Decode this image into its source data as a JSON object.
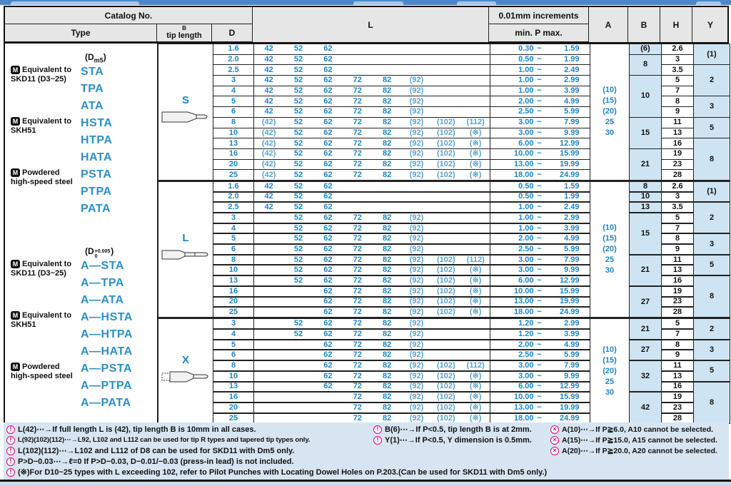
{
  "header": {
    "catalog_no": "Catalog No.",
    "type": "Type",
    "tip_b": "B",
    "tip_length": "tip length",
    "d": "D",
    "l": "L",
    "increments": "0.01mm increments",
    "min_p_max": "min.  P  max.",
    "a": "A",
    "b": "B",
    "h": "H",
    "y": "Y"
  },
  "catalog": {
    "groups": [
      {
        "dim": {
          "pre": "(D",
          "sub": "m5",
          "post": ")"
        },
        "materials": [
          {
            "badge": "M",
            "label": "Equivalent to SKD11 (D3~25)",
            "types": [
              "STA",
              "TPA",
              "ATA"
            ]
          },
          {
            "badge": "M",
            "label": "Equivalent to SKH51",
            "types": [
              "HSTA",
              "HTPA",
              "HATA"
            ]
          },
          {
            "badge": "M",
            "label": "Powdered high-speed steel",
            "types": [
              "PSTA",
              "PTPA",
              "PATA"
            ]
          }
        ]
      },
      {
        "dim": {
          "pre": "(D",
          "sup": "+0.005",
          "sub": "0",
          "post": ")"
        },
        "materials": [
          {
            "badge": "M",
            "label": "Equivalent to SKD11 (D3~25)",
            "types": [
              "A—STA",
              "A—TPA",
              "A—ATA"
            ]
          },
          {
            "badge": "M",
            "label": "Equivalent to SKH51",
            "types": [
              "A—HSTA",
              "A—HTPA",
              "A—HATA"
            ]
          },
          {
            "badge": "M",
            "label": "Powdered high-speed steel",
            "types": [
              "A—PSTA",
              "A—PTPA",
              "A—PATA"
            ]
          }
        ]
      }
    ]
  },
  "sections": [
    {
      "shape": "S",
      "a_values": [
        "(10)",
        "(15)",
        "(20)",
        "25",
        "30"
      ],
      "b_groups": [
        [
          "(6)",
          1
        ],
        [
          "8",
          2
        ],
        [
          "10",
          4
        ],
        [
          "15",
          3
        ],
        [
          "21",
          3
        ]
      ],
      "y_groups": [
        [
          "(1)",
          2
        ],
        [
          "2",
          3
        ],
        [
          "3",
          2
        ],
        [
          "5",
          2
        ],
        [
          "8",
          4
        ]
      ],
      "rows": [
        {
          "d": "1.6",
          "l": [
            "42",
            "52",
            "62",
            "",
            "",
            "",
            "",
            ""
          ],
          "p": [
            "0.30",
            "1.59"
          ],
          "h": "2.6"
        },
        {
          "d": "2.0",
          "l": [
            "42",
            "52",
            "62",
            "",
            "",
            "",
            "",
            ""
          ],
          "p": [
            "0.50",
            "1.99"
          ],
          "h": "3"
        },
        {
          "d": "2.5",
          "l": [
            "42",
            "52",
            "62",
            "",
            "",
            "",
            "",
            ""
          ],
          "p": [
            "1.00",
            "2.49"
          ],
          "h": "3.5"
        },
        {
          "d": "3",
          "l": [
            "42",
            "52",
            "62",
            "72",
            "82",
            "(92)",
            "",
            ""
          ],
          "p": [
            "1.00",
            "2.99"
          ],
          "h": "5"
        },
        {
          "d": "4",
          "l": [
            "42",
            "52",
            "62",
            "72",
            "82",
            "(92)",
            "",
            ""
          ],
          "p": [
            "1.00",
            "3.99"
          ],
          "h": "7"
        },
        {
          "d": "5",
          "l": [
            "42",
            "52",
            "62",
            "72",
            "82",
            "(92)",
            "",
            ""
          ],
          "p": [
            "2.00",
            "4.99"
          ],
          "h": "8"
        },
        {
          "d": "6",
          "l": [
            "42",
            "52",
            "62",
            "72",
            "82",
            "(92)",
            "",
            ""
          ],
          "p": [
            "2.50",
            "5.99"
          ],
          "h": "9"
        },
        {
          "d": "8",
          "l": [
            "(42)",
            "52",
            "62",
            "72",
            "82",
            "(92)",
            "(102)",
            "(112)"
          ],
          "p": [
            "3.00",
            "7.99"
          ],
          "h": "11"
        },
        {
          "d": "10",
          "l": [
            "(42)",
            "52",
            "62",
            "72",
            "82",
            "(92)",
            "(102)",
            "(※)"
          ],
          "p": [
            "3.00",
            "9.99"
          ],
          "h": "13"
        },
        {
          "d": "13",
          "l": [
            "(42)",
            "52",
            "62",
            "72",
            "82",
            "(92)",
            "(102)",
            "(※)"
          ],
          "p": [
            "6.00",
            "12.99"
          ],
          "h": "16"
        },
        {
          "d": "16",
          "l": [
            "(42)",
            "52",
            "62",
            "72",
            "82",
            "(92)",
            "(102)",
            "(※)"
          ],
          "p": [
            "10.00",
            "15.99"
          ],
          "h": "19"
        },
        {
          "d": "20",
          "l": [
            "(42)",
            "52",
            "62",
            "72",
            "82",
            "(92)",
            "(102)",
            "(※)"
          ],
          "p": [
            "13.00",
            "19.99"
          ],
          "h": "23"
        },
        {
          "d": "25",
          "l": [
            "(42)",
            "52",
            "62",
            "72",
            "82",
            "(92)",
            "(102)",
            "(※)"
          ],
          "p": [
            "18.00",
            "24.99"
          ],
          "h": "28"
        }
      ]
    },
    {
      "shape": "L",
      "a_values": [
        "(10)",
        "(15)",
        "(20)",
        "25",
        "30"
      ],
      "b_groups": [
        [
          "8",
          1
        ],
        [
          "10",
          1
        ],
        [
          "13",
          1
        ],
        [
          "15",
          4
        ],
        [
          "21",
          3
        ],
        [
          "27",
          3
        ]
      ],
      "y_groups": [
        [
          "(1)",
          2
        ],
        [
          "2",
          3
        ],
        [
          "3",
          2
        ],
        [
          "5",
          2
        ],
        [
          "8",
          4
        ]
      ],
      "rows": [
        {
          "d": "1.6",
          "l": [
            "42",
            "52",
            "62",
            "",
            "",
            "",
            "",
            ""
          ],
          "p": [
            "0.50",
            "1.59"
          ],
          "h": "2.6"
        },
        {
          "d": "2.0",
          "l": [
            "42",
            "52",
            "62",
            "",
            "",
            "",
            "",
            ""
          ],
          "p": [
            "0.50",
            "1.99"
          ],
          "h": "3"
        },
        {
          "d": "2.5",
          "l": [
            "42",
            "52",
            "62",
            "",
            "",
            "",
            "",
            ""
          ],
          "p": [
            "1.00",
            "2.49"
          ],
          "h": "3.5"
        },
        {
          "d": "3",
          "l": [
            "",
            "52",
            "62",
            "72",
            "82",
            "(92)",
            "",
            ""
          ],
          "p": [
            "1.00",
            "2.99"
          ],
          "h": "5"
        },
        {
          "d": "4",
          "l": [
            "",
            "52",
            "62",
            "72",
            "82",
            "(92)",
            "",
            ""
          ],
          "p": [
            "1.00",
            "3.99"
          ],
          "h": "7"
        },
        {
          "d": "5",
          "l": [
            "",
            "52",
            "62",
            "72",
            "82",
            "(92)",
            "",
            ""
          ],
          "p": [
            "2.00",
            "4.99"
          ],
          "h": "8"
        },
        {
          "d": "6",
          "l": [
            "",
            "52",
            "62",
            "72",
            "82",
            "(92)",
            "",
            ""
          ],
          "p": [
            "2.50",
            "5.99"
          ],
          "h": "9"
        },
        {
          "d": "8",
          "l": [
            "",
            "52",
            "62",
            "72",
            "82",
            "(92)",
            "(102)",
            "(112)"
          ],
          "p": [
            "3.00",
            "7.99"
          ],
          "h": "11"
        },
        {
          "d": "10",
          "l": [
            "",
            "52",
            "62",
            "72",
            "82",
            "(92)",
            "(102)",
            "(※)"
          ],
          "p": [
            "3.00",
            "9.99"
          ],
          "h": "13"
        },
        {
          "d": "13",
          "l": [
            "",
            "52",
            "62",
            "72",
            "82",
            "(92)",
            "(102)",
            "(※)"
          ],
          "p": [
            "6.00",
            "12.99"
          ],
          "h": "16"
        },
        {
          "d": "16",
          "l": [
            "",
            "",
            "62",
            "72",
            "82",
            "(92)",
            "(102)",
            "(※)"
          ],
          "p": [
            "10.00",
            "15.99"
          ],
          "h": "19"
        },
        {
          "d": "20",
          "l": [
            "",
            "",
            "62",
            "72",
            "82",
            "(92)",
            "(102)",
            "(※)"
          ],
          "p": [
            "13.00",
            "19.99"
          ],
          "h": "23"
        },
        {
          "d": "25",
          "l": [
            "",
            "",
            "62",
            "72",
            "82",
            "(92)",
            "(102)",
            "(※)"
          ],
          "p": [
            "18.00",
            "24.99"
          ],
          "h": "28"
        }
      ]
    },
    {
      "shape": "X",
      "a_values": [
        "(10)",
        "(15)",
        "(20)",
        "25",
        "30"
      ],
      "b_groups": [
        [
          "21",
          2
        ],
        [
          "27",
          2
        ],
        [
          "32",
          3
        ],
        [
          "42",
          3
        ]
      ],
      "y_groups": [
        [
          "2",
          2
        ],
        [
          "3",
          2
        ],
        [
          "5",
          2
        ],
        [
          "8",
          4
        ]
      ],
      "rows": [
        {
          "d": "3",
          "l": [
            "",
            "52",
            "62",
            "72",
            "82",
            "(92)",
            "",
            ""
          ],
          "p": [
            "1.20",
            "2.99"
          ],
          "h": "5"
        },
        {
          "d": "4",
          "l": [
            "",
            "52",
            "62",
            "72",
            "82",
            "(92)",
            "",
            ""
          ],
          "p": [
            "1.20",
            "3.99"
          ],
          "h": "7"
        },
        {
          "d": "5",
          "l": [
            "",
            "",
            "62",
            "72",
            "82",
            "(92)",
            "",
            ""
          ],
          "p": [
            "2.00",
            "4.99"
          ],
          "h": "8"
        },
        {
          "d": "6",
          "l": [
            "",
            "",
            "62",
            "72",
            "82",
            "(92)",
            "",
            ""
          ],
          "p": [
            "2.50",
            "5.99"
          ],
          "h": "9"
        },
        {
          "d": "8",
          "l": [
            "",
            "",
            "62",
            "72",
            "82",
            "(92)",
            "(102)",
            "(112)"
          ],
          "p": [
            "3.00",
            "7.99"
          ],
          "h": "11"
        },
        {
          "d": "10",
          "l": [
            "",
            "",
            "62",
            "72",
            "82",
            "(92)",
            "(102)",
            "(※)"
          ],
          "p": [
            "3.00",
            "9.99"
          ],
          "h": "13"
        },
        {
          "d": "13",
          "l": [
            "",
            "",
            "62",
            "72",
            "82",
            "(92)",
            "(102)",
            "(※)"
          ],
          "p": [
            "6.00",
            "12.99"
          ],
          "h": "16"
        },
        {
          "d": "16",
          "l": [
            "",
            "",
            "",
            "72",
            "82",
            "(92)",
            "(102)",
            "(※)"
          ],
          "p": [
            "10.00",
            "15.99"
          ],
          "h": "19"
        },
        {
          "d": "20",
          "l": [
            "",
            "",
            "",
            "72",
            "82",
            "(92)",
            "(102)",
            "(※)"
          ],
          "p": [
            "13.00",
            "19.99"
          ],
          "h": "23"
        },
        {
          "d": "25",
          "l": [
            "",
            "",
            "",
            "72",
            "82",
            "(92)",
            "(102)",
            "(※)"
          ],
          "p": [
            "18.00",
            "24.99"
          ],
          "h": "28"
        }
      ]
    }
  ],
  "footnotes": {
    "left": [
      {
        "icon": "caution",
        "text": "L(42)⋯→If full length L is (42), tip length B is 10mm in all cases."
      },
      {
        "icon": "caution",
        "text": "L(92)(102)(112)⋯→L92, L102 and L112 can be used for tip R types and tapered tip types only."
      },
      {
        "icon": "caution",
        "text": "L(102)(112)⋯→L102 and L112 of D8 can be used for SKD11 with Dm5 only."
      },
      {
        "icon": "caution",
        "text": "P>D−0.03⋯→ℓ=0   If P>D−0.03, D−0.01/−0.03 (press-in lead) is not included."
      },
      {
        "icon": "caution",
        "text": "(※)For D10~25 types with L exceeding 102, refer to Pilot Punches with Locating Dowel Holes on P.203.(Can be used for SKD11 with Dm5 only.)"
      }
    ],
    "mid": [
      {
        "icon": "caution",
        "text": "B(6)⋯→If P<0.5, tip length B is at 2mm."
      },
      {
        "icon": "caution",
        "text": "Y(1)⋯→If P<0.5, Y dimension is 0.5mm."
      }
    ],
    "right": [
      {
        "icon": "prohibited",
        "text": "A(10)⋯→If P≧6.0, A10 cannot be selected."
      },
      {
        "icon": "prohibited",
        "text": "A(15)⋯→If P≧15.0, A15 cannot be selected."
      },
      {
        "icon": "prohibited",
        "text": "A(20)⋯→If P≧20.0, A20 cannot be selected."
      }
    ]
  },
  "colors": {
    "accent_blue_text": "#1a86c8",
    "type_name_blue": "#2d8fc6",
    "cell_blue": "#cfe4f2",
    "header_gray": "#e6e6e6",
    "footnote_bg": "#d6e5f1",
    "caution_magenta": "#e5007e",
    "topbar_blue": "#4d87c7"
  }
}
